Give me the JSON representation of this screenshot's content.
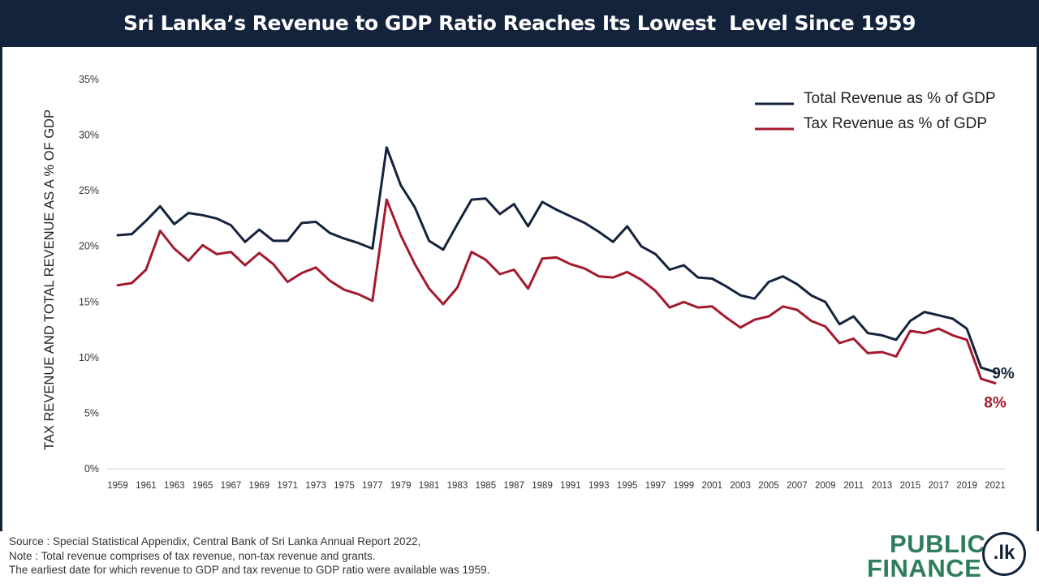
{
  "title": "Sri Lanka’s Revenue to GDP Ratio Reaches Its Lowest  Level Since 1959",
  "colors": {
    "header_bg": "#14233c",
    "total_line": "#14233c",
    "tax_line": "#a31a2f",
    "logo_green": "#2e7d5b"
  },
  "chart_data": {
    "type": "line",
    "ylabel": "TAX REVENUE AND TOTAL REVENUE AS A % OF GDP",
    "xlabel": "",
    "ylim": [
      0,
      35
    ],
    "yticks": [
      "0%",
      "5%",
      "10%",
      "15%",
      "20%",
      "25%",
      "30%",
      "35%"
    ],
    "xtick_labels": [
      "1959",
      "1961",
      "1963",
      "1965",
      "1967",
      "1969",
      "1971",
      "1973",
      "1975",
      "1977",
      "1979",
      "1981",
      "1983",
      "1985",
      "1987",
      "1989",
      "1991",
      "1993",
      "1995",
      "1997",
      "1999",
      "2001",
      "2003",
      "2005",
      "2007",
      "2009",
      "2011",
      "2013",
      "2015",
      "2017",
      "2019",
      "2021"
    ],
    "x": [
      1959,
      1960,
      1961,
      1962,
      1963,
      1964,
      1965,
      1966,
      1967,
      1968,
      1969,
      1970,
      1971,
      1972,
      1973,
      1974,
      1975,
      1976,
      1977,
      1978,
      1979,
      1980,
      1981,
      1982,
      1983,
      1984,
      1985,
      1986,
      1987,
      1988,
      1989,
      1990,
      1991,
      1992,
      1993,
      1994,
      1995,
      1996,
      1997,
      1998,
      1999,
      2000,
      2001,
      2002,
      2003,
      2004,
      2005,
      2006,
      2007,
      2008,
      2009,
      2010,
      2011,
      2012,
      2013,
      2014,
      2015,
      2016,
      2017,
      2018,
      2019,
      2020,
      2021
    ],
    "grid": false,
    "legend_position": "top-right",
    "series": [
      {
        "name": "Total Revenue as % of GDP",
        "color": "#14233c",
        "end_label": "9%",
        "values": [
          21.0,
          21.1,
          22.3,
          23.6,
          22.0,
          23.0,
          22.8,
          22.5,
          21.9,
          20.4,
          21.5,
          20.5,
          20.5,
          22.1,
          22.2,
          21.2,
          20.7,
          20.3,
          19.8,
          28.9,
          25.5,
          23.5,
          20.5,
          19.7,
          22.0,
          24.2,
          24.3,
          22.9,
          23.8,
          21.8,
          24.0,
          23.3,
          22.7,
          22.1,
          21.3,
          20.4,
          21.8,
          20.0,
          19.3,
          17.9,
          18.3,
          17.2,
          17.1,
          16.4,
          15.6,
          15.3,
          16.8,
          17.3,
          16.6,
          15.6,
          15.0,
          13.0,
          13.7,
          12.2,
          12.0,
          11.6,
          13.3,
          14.1,
          13.8,
          13.5,
          12.6,
          9.1,
          8.7
        ]
      },
      {
        "name": "Tax Revenue as % of GDP",
        "color": "#a31a2f",
        "end_label": "8%",
        "values": [
          16.5,
          16.7,
          17.9,
          21.4,
          19.8,
          18.7,
          20.1,
          19.3,
          19.5,
          18.3,
          19.4,
          18.4,
          16.8,
          17.6,
          18.1,
          16.9,
          16.1,
          15.7,
          15.1,
          24.2,
          21.0,
          18.4,
          16.2,
          14.8,
          16.3,
          19.5,
          18.8,
          17.5,
          17.9,
          16.2,
          18.9,
          19.0,
          18.4,
          18.0,
          17.3,
          17.2,
          17.7,
          17.0,
          16.0,
          14.5,
          15.0,
          14.5,
          14.6,
          13.6,
          12.7,
          13.4,
          13.7,
          14.6,
          14.3,
          13.3,
          12.8,
          11.3,
          11.7,
          10.4,
          10.5,
          10.1,
          12.4,
          12.2,
          12.6,
          12.0,
          11.6,
          8.1,
          7.7
        ]
      }
    ]
  },
  "footer": {
    "source": "Source : Special Statistical Appendix, Central Bank of Sri Lanka Annual Report 2022,",
    "note": "Note : Total revenue comprises of tax revenue, non-tax revenue and grants.",
    "earliest": "The earliest date for which revenue to GDP and tax revenue to GDP ratio were available was 1959."
  },
  "logo": {
    "line1": "PUBLIC",
    "line2": "FINANCE",
    "badge": ".lk"
  }
}
